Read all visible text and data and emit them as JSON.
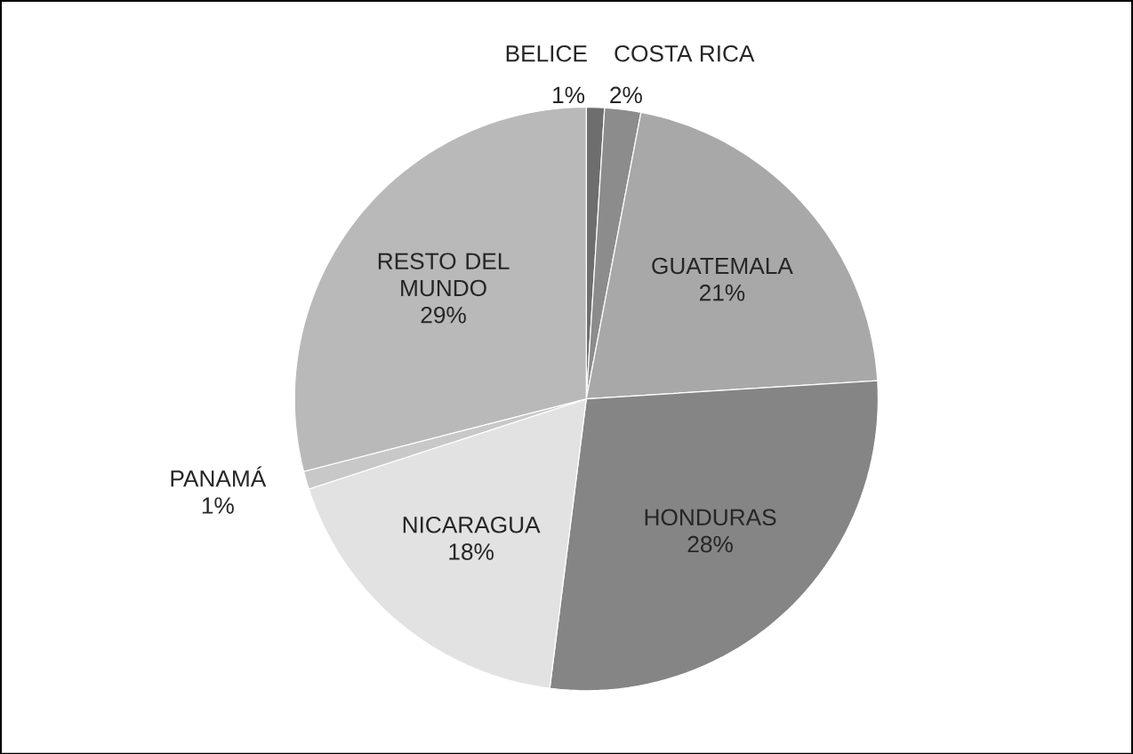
{
  "chart_data": {
    "type": "pie",
    "categories": [
      "BELICE",
      "COSTA RICA",
      "GUATEMALA",
      "HONDURAS",
      "NICARAGUA",
      "PANAMÁ",
      "RESTO DEL MUNDO"
    ],
    "values": [
      1,
      2,
      21,
      28,
      18,
      1,
      29
    ],
    "value_labels": [
      "1%",
      "2%",
      "21%",
      "28%",
      "18%",
      "1%",
      "29%"
    ],
    "colors": [
      "#6e6e6e",
      "#8c8c8c",
      "#a8a8a8",
      "#858585",
      "#e2e2e2",
      "#c8c8c8",
      "#b9b9b9"
    ]
  }
}
